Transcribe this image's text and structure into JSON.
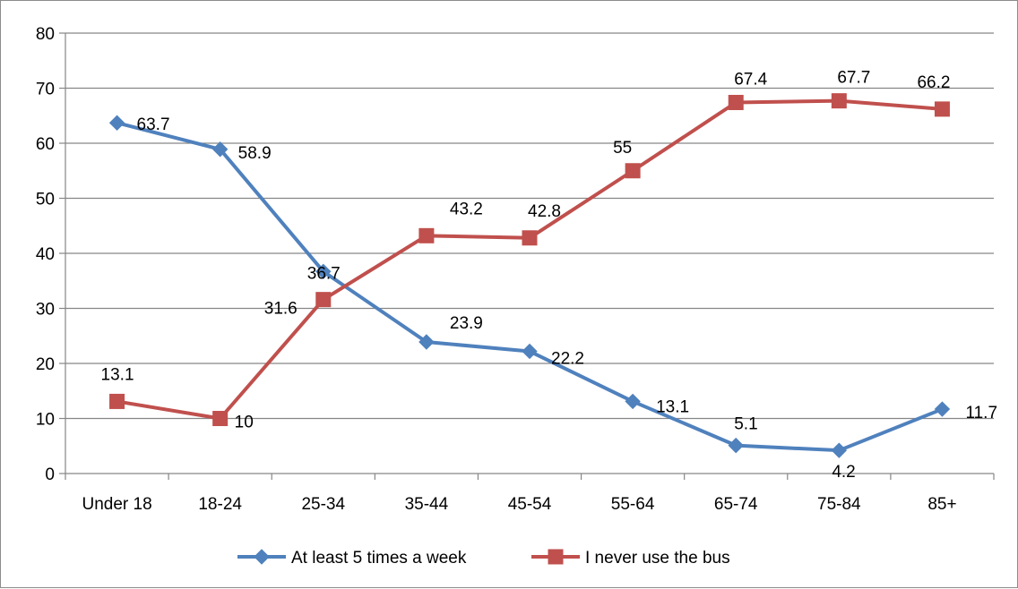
{
  "chart_data": {
    "type": "line",
    "categories": [
      "Under 18",
      "18-24",
      "25-34",
      "35-44",
      "45-54",
      "55-64",
      "65-74",
      "75-84",
      "85+"
    ],
    "series": [
      {
        "name": "At least 5 times a week",
        "color": "#4f81bd",
        "marker": "diamond",
        "values": [
          63.7,
          58.9,
          36.7,
          23.9,
          22.2,
          13.1,
          5.1,
          4.2,
          11.7
        ],
        "labels": [
          "63.7",
          "58.9",
          "36.7",
          "23.9",
          "22.2",
          "13.1",
          "5.1",
          "4.2",
          "11.7"
        ]
      },
      {
        "name": "I never use the bus",
        "color": "#c0504d",
        "marker": "square",
        "values": [
          13.1,
          10,
          31.6,
          43.2,
          42.8,
          55,
          67.4,
          67.7,
          66.2
        ],
        "labels": [
          "13.1",
          "10",
          "31.6",
          "43.2",
          "42.8",
          "55",
          "67.4",
          "67.7",
          "66.2"
        ]
      }
    ],
    "yticks": [
      "0",
      "10",
      "20",
      "30",
      "40",
      "50",
      "60",
      "70",
      "80"
    ],
    "ylim": [
      0,
      80
    ],
    "grid": true,
    "legend": "bottom",
    "title": "",
    "xlabel": "",
    "ylabel": ""
  }
}
